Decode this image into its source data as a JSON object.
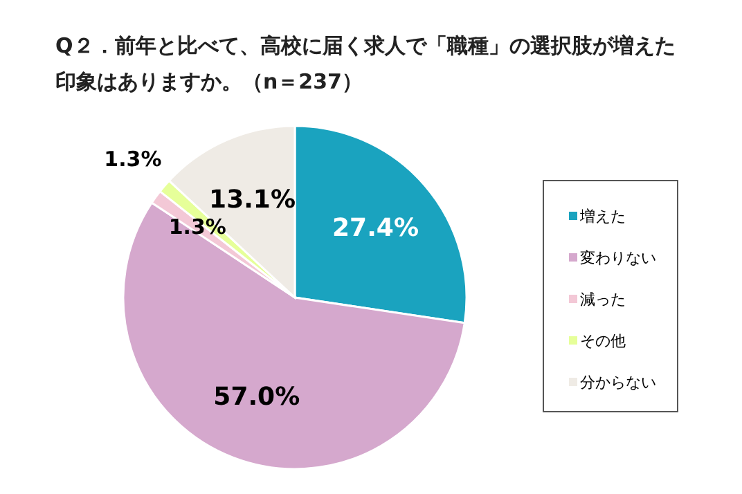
{
  "chart_data": {
    "type": "pie",
    "title": "Q２．前年と比べて、高校に届く求人で「職種」の選択肢が増えた印象はありますか。（n＝237）",
    "categories": [
      "増えた",
      "変わりない",
      "減った",
      "その他",
      "分からない"
    ],
    "values": [
      27.4,
      57.0,
      1.3,
      1.3,
      13.1
    ],
    "colors": [
      "#1aa3bf",
      "#d5a8cd",
      "#f3c8d6",
      "#e6ff99",
      "#efebe5"
    ],
    "value_labels": [
      "27.4%",
      "57.0%",
      "1.3%",
      "1.3%",
      "13.1%"
    ],
    "legend": "right"
  }
}
